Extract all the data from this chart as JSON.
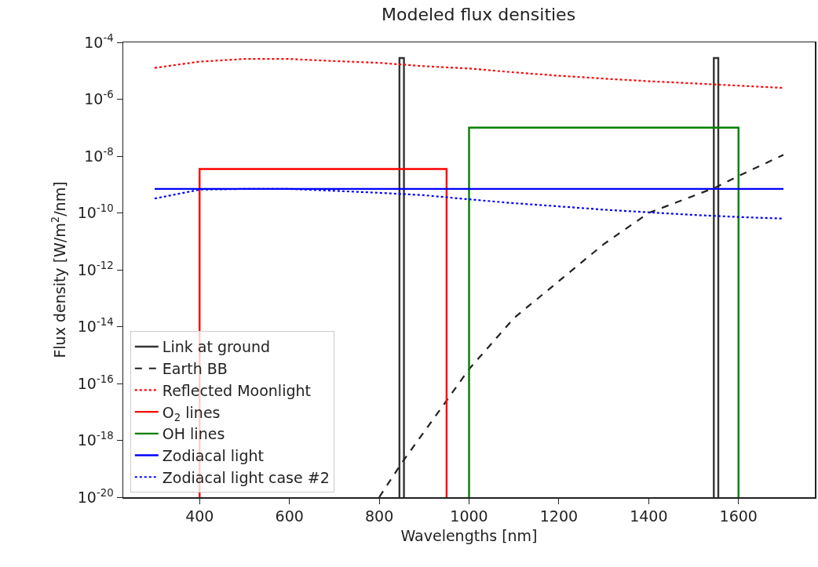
{
  "chart_data": {
    "type": "line",
    "title": "Modeled flux densities",
    "xlabel": "Wavelengths [nm]",
    "ylabel": "Flux density [W/m$^{2}$/nm]",
    "log": "y",
    "grid": false,
    "legend": "bottom left",
    "marker": "none",
    "xlim": [
      230,
      1770
    ],
    "xticks": [
      400,
      600,
      800,
      1000,
      1200,
      1400,
      1600
    ],
    "ylim": [
      1e-20,
      0.0001
    ],
    "yticks": [
      {
        "value": 1e-20,
        "label": "10$^{-20}$"
      },
      {
        "value": 1e-18,
        "label": "10$^{-18}$"
      },
      {
        "value": 1e-16,
        "label": "10$^{-16}$"
      },
      {
        "value": 1e-14,
        "label": "10$^{-14}$"
      },
      {
        "value": 1e-12,
        "label": "10$^{-12}$"
      },
      {
        "value": 1e-10,
        "label": "10$^{-10}$"
      },
      {
        "value": 1e-08,
        "label": "10$^{-8}$"
      },
      {
        "value": 1e-06,
        "label": "10$^{-6}$"
      },
      {
        "value": 0.0001,
        "label": "10$^{-4}$"
      }
    ],
    "series": [
      {
        "name": "Link at ground",
        "color": "#333333",
        "line_style": "solid",
        "x": [
          845,
          845,
          855,
          855,
          null,
          1545,
          1545,
          1555,
          1555
        ],
        "values": [
          1e-20,
          2.8e-05,
          2.8e-05,
          1e-20,
          null,
          1e-20,
          2.8e-05,
          2.8e-05,
          1e-20
        ]
      },
      {
        "name": "Earth BB",
        "color": "#222222",
        "line_style": "dashed",
        "x": [
          800,
          850,
          900,
          950,
          1000,
          1100,
          1200,
          1300,
          1400,
          1500,
          1550,
          1600,
          1700
        ],
        "values": [
          1e-20,
          1.6e-19,
          2e-18,
          2.5e-17,
          3.2e-16,
          2e-14,
          4e-13,
          8e-12,
          1e-10,
          4e-10,
          8e-10,
          2e-09,
          1.1e-08
        ]
      },
      {
        "name": "Reflected Moonlight",
        "color": "#ff0000",
        "line_style": "dotted",
        "x": [
          300,
          400,
          500,
          600,
          700,
          800,
          900,
          1000,
          1100,
          1200,
          1300,
          1400,
          1500,
          1600,
          1700
        ],
        "values": [
          1.26e-05,
          2.1e-05,
          2.6e-05,
          2.6e-05,
          2.2e-05,
          1.9e-05,
          1.45e-05,
          1.2e-05,
          8.8e-06,
          6.7e-06,
          5.3e-06,
          4.3e-06,
          3.6e-06,
          3e-06,
          2.5e-06
        ]
      },
      {
        "name": "O$_{2}$ lines",
        "color": "#ff0000",
        "line_style": "solid",
        "x": [
          400,
          400,
          950,
          950
        ],
        "values": [
          1e-20,
          3.5e-09,
          3.5e-09,
          1e-20
        ]
      },
      {
        "name": "OH lines",
        "color": "#008000",
        "line_style": "solid",
        "x": [
          1000,
          1000,
          1600,
          1600
        ],
        "values": [
          1e-20,
          1e-07,
          1e-07,
          1e-20
        ]
      },
      {
        "name": "Zodiacal light",
        "color": "#0000ff",
        "line_style": "solid",
        "x": [
          300,
          1700
        ],
        "values": [
          7e-10,
          7e-10
        ]
      },
      {
        "name": "Zodiacal light case #2",
        "color": "#0000ff",
        "line_style": "dotted",
        "x": [
          300,
          400,
          500,
          600,
          700,
          800,
          900,
          1000,
          1100,
          1200,
          1300,
          1400,
          1500,
          1600,
          1700
        ],
        "values": [
          3.2e-10,
          6.6e-10,
          7e-10,
          7e-10,
          6e-10,
          5.1e-10,
          4.2e-10,
          3e-10,
          2.2e-10,
          1.7e-10,
          1.3e-10,
          1.05e-10,
          8.5e-11,
          7.2e-11,
          6.3e-11
        ]
      }
    ]
  }
}
